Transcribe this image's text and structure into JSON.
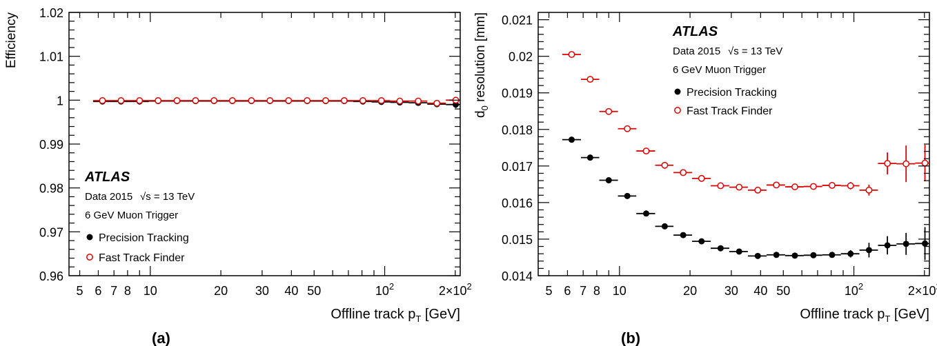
{
  "chart_data": [
    {
      "type": "scatter",
      "panel_label": "(a)",
      "xlabel": "Offline track p",
      "xlabel_sub": "T",
      "xlabel_unit": "[GeV]",
      "ylabel": "Efficiency",
      "xscale": "log",
      "xlim": [
        4.5,
        210
      ],
      "ylim": [
        0.96,
        1.02
      ],
      "yticks": [
        "0.96",
        "0.97",
        "0.98",
        "0.99",
        "1",
        "1.01",
        "1.02"
      ],
      "xticks": [
        {
          "v": 5,
          "label": "5"
        },
        {
          "v": 6,
          "label": "6"
        },
        {
          "v": 7,
          "label": "7"
        },
        {
          "v": 8,
          "label": "8"
        },
        {
          "v": 10,
          "label": "10"
        },
        {
          "v": 20,
          "label": "20"
        },
        {
          "v": 30,
          "label": "30"
        },
        {
          "v": 40,
          "label": "40"
        },
        {
          "v": 50,
          "label": "50"
        },
        {
          "v": 100,
          "label": "10",
          "sup": "2"
        },
        {
          "v": 200,
          "label": "2×10",
          "sup": "2"
        }
      ],
      "text": {
        "atlas": "ATLAS",
        "data_prefix": "Data 2015",
        "energy": "√s = 13 TeV",
        "trigger": "6 GeV Muon Trigger"
      },
      "legend_position": "bottom-left",
      "series": [
        {
          "name": "Precision Tracking",
          "color": "#000000",
          "marker": "filled-circle",
          "x": [
            6.25,
            7.5,
            9.0,
            10.8,
            13.0,
            15.6,
            18.7,
            22.4,
            27,
            32.4,
            38.9,
            46.7,
            56,
            67.2,
            80.7,
            96.8,
            116,
            139,
            167,
            201
          ],
          "xlo": [
            5.7,
            6.85,
            8.2,
            9.85,
            11.8,
            14.2,
            17.0,
            20.4,
            24.5,
            29.4,
            35.3,
            42.4,
            50.9,
            61.1,
            73.3,
            88,
            105.6,
            126.7,
            152,
            182.4
          ],
          "xhi": [
            6.85,
            8.2,
            9.85,
            11.8,
            14.2,
            17.0,
            20.4,
            24.5,
            29.4,
            35.3,
            42.4,
            50.9,
            61.1,
            73.3,
            88,
            105.6,
            126.7,
            152,
            182.4,
            210
          ],
          "y": [
            0.9997,
            0.9997,
            0.9997,
            0.9998,
            0.9998,
            0.9998,
            0.9998,
            0.9998,
            0.9998,
            0.9998,
            0.9998,
            0.9998,
            0.9998,
            0.9998,
            0.9997,
            0.9996,
            0.9995,
            0.9994,
            0.9991,
            0.999
          ],
          "yerr": [
            0.0001,
            0.0001,
            0.0001,
            0.0001,
            0.0001,
            0.0001,
            0.0001,
            0.0001,
            0.0001,
            0.0001,
            0.0001,
            0.0001,
            0.0001,
            0.0001,
            0.0001,
            0.0002,
            0.0002,
            0.0003,
            0.0004,
            0.0008
          ]
        },
        {
          "name": "Fast Track Finder",
          "color": "#dd0000",
          "marker": "open-circle",
          "x": [
            6.25,
            7.5,
            9.0,
            10.8,
            13.0,
            15.6,
            18.7,
            22.4,
            27,
            32.4,
            38.9,
            46.7,
            56,
            67.2,
            80.7,
            96.8,
            116,
            139,
            167,
            201
          ],
          "xlo": [
            5.7,
            6.85,
            8.2,
            9.85,
            11.8,
            14.2,
            17.0,
            20.4,
            24.5,
            29.4,
            35.3,
            42.4,
            50.9,
            61.1,
            73.3,
            88,
            105.6,
            126.7,
            152,
            182.4
          ],
          "xhi": [
            6.85,
            8.2,
            9.85,
            11.8,
            14.2,
            17.0,
            20.4,
            24.5,
            29.4,
            35.3,
            42.4,
            50.9,
            61.1,
            73.3,
            88,
            105.6,
            126.7,
            152,
            182.4,
            210
          ],
          "y": [
            0.9999,
            0.9999,
            0.9999,
            0.9999,
            0.9999,
            0.9999,
            0.9999,
            0.9999,
            0.9999,
            0.9999,
            0.9999,
            0.9999,
            0.9999,
            0.9999,
            0.9999,
            0.9999,
            0.9998,
            0.9998,
            0.9993,
            1.0
          ],
          "yerr": [
            5e-05,
            5e-05,
            5e-05,
            5e-05,
            5e-05,
            5e-05,
            5e-05,
            5e-05,
            5e-05,
            5e-05,
            5e-05,
            5e-05,
            5e-05,
            5e-05,
            5e-05,
            5e-05,
            0.0001,
            0.0001,
            0.0002,
            0.0003
          ]
        }
      ]
    },
    {
      "type": "scatter",
      "panel_label": "(b)",
      "xlabel": "Offline track p",
      "xlabel_sub": "T",
      "xlabel_unit": "[GeV]",
      "ylabel": "d",
      "ylabel_sub": "0",
      "ylabel_rest": " resolution [mm]",
      "xscale": "log",
      "xlim": [
        4.5,
        210
      ],
      "ylim": [
        0.014,
        0.0212
      ],
      "yticks": [
        "0.014",
        "0.015",
        "0.016",
        "0.017",
        "0.018",
        "0.019",
        "0.02",
        "0.021"
      ],
      "xticks": [
        {
          "v": 5,
          "label": "5"
        },
        {
          "v": 6,
          "label": "6"
        },
        {
          "v": 7,
          "label": "7"
        },
        {
          "v": 8,
          "label": "8"
        },
        {
          "v": 10,
          "label": "10"
        },
        {
          "v": 20,
          "label": "20"
        },
        {
          "v": 30,
          "label": "30"
        },
        {
          "v": 40,
          "label": "40"
        },
        {
          "v": 50,
          "label": "50"
        },
        {
          "v": 100,
          "label": "10",
          "sup": "2"
        },
        {
          "v": 200,
          "label": "2×10",
          "sup": "2"
        }
      ],
      "text": {
        "atlas": "ATLAS",
        "data_prefix": "Data 2015",
        "energy": "√s = 13 TeV",
        "trigger": "6 GeV Muon Trigger"
      },
      "legend_position": "top-middle",
      "series": [
        {
          "name": "Precision Tracking",
          "color": "#000000",
          "marker": "filled-circle",
          "x": [
            6.25,
            7.5,
            9.0,
            10.8,
            13.0,
            15.6,
            18.7,
            22.4,
            27,
            32.4,
            38.9,
            46.7,
            56,
            67.2,
            80.7,
            96.8,
            116,
            139,
            167,
            201
          ],
          "xlo": [
            5.7,
            6.85,
            8.2,
            9.85,
            11.8,
            14.2,
            17.0,
            20.4,
            24.5,
            29.4,
            35.3,
            42.4,
            50.9,
            61.1,
            73.3,
            88,
            105.6,
            126.7,
            152,
            182.4
          ],
          "xhi": [
            6.85,
            8.2,
            9.85,
            11.8,
            14.2,
            17.0,
            20.4,
            24.5,
            29.4,
            35.3,
            42.4,
            50.9,
            61.1,
            73.3,
            88,
            105.6,
            126.7,
            152,
            182.4,
            210
          ],
          "y": [
            0.01772,
            0.01723,
            0.01661,
            0.01618,
            0.0157,
            0.01535,
            0.01511,
            0.01494,
            0.01475,
            0.01466,
            0.01454,
            0.01457,
            0.01455,
            0.01456,
            0.01457,
            0.0146,
            0.0147,
            0.01483,
            0.01487,
            0.01488
          ],
          "yerr": [
            3e-05,
            3e-05,
            3e-05,
            3e-05,
            3e-05,
            3e-05,
            3e-05,
            3e-05,
            3e-05,
            3e-05,
            3e-05,
            3e-05,
            3e-05,
            3e-05,
            6e-05,
            0.0001,
            0.0002,
            0.00025,
            0.0003,
            0.00045
          ]
        },
        {
          "name": "Fast Track Finder",
          "color": "#dd0000",
          "marker": "open-circle",
          "x": [
            6.25,
            7.5,
            9.0,
            10.8,
            13.0,
            15.6,
            18.7,
            22.4,
            27,
            32.4,
            38.9,
            46.7,
            56,
            67.2,
            80.7,
            96.8,
            116,
            139,
            167,
            201
          ],
          "xlo": [
            5.7,
            6.85,
            8.2,
            9.85,
            11.8,
            14.2,
            17.0,
            20.4,
            24.5,
            29.4,
            35.3,
            42.4,
            50.9,
            61.1,
            73.3,
            88,
            105.6,
            126.7,
            152,
            182.4
          ],
          "xhi": [
            6.85,
            8.2,
            9.85,
            11.8,
            14.2,
            17.0,
            20.4,
            24.5,
            29.4,
            35.3,
            42.4,
            50.9,
            61.1,
            73.3,
            88,
            105.6,
            126.7,
            152,
            182.4,
            210
          ],
          "y": [
            0.02005,
            0.01937,
            0.01849,
            0.01802,
            0.01741,
            0.01702,
            0.01682,
            0.01666,
            0.01646,
            0.01642,
            0.01634,
            0.01648,
            0.01643,
            0.01644,
            0.01647,
            0.01646,
            0.01634,
            0.01707,
            0.01706,
            0.01708
          ],
          "yerr": [
            3e-05,
            3e-05,
            3e-05,
            3e-05,
            3e-05,
            3e-05,
            3e-05,
            3e-05,
            3e-05,
            3e-05,
            3e-05,
            3e-05,
            3e-05,
            3e-05,
            6e-05,
            0.0001,
            0.00015,
            0.0003,
            0.0005,
            0.0005
          ]
        }
      ]
    }
  ]
}
